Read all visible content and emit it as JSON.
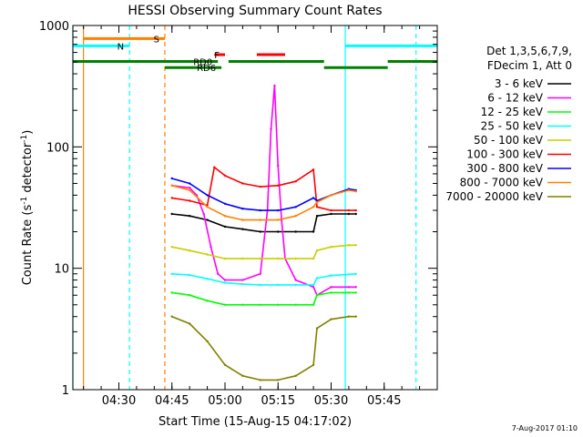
{
  "chart_data": {
    "type": "line",
    "title": "HESSI Observing Summary Count Rates",
    "xlabel": "Start Time (15-Aug-15 04:17:02)",
    "ylabel_main": "Count Rate (s",
    "ylabel_sup1": "-1",
    "ylabel_mid": " detector",
    "ylabel_sup2": "-1",
    "ylabel_end": ")",
    "y_scale": "log",
    "xlim": [
      "04:17",
      "06:00"
    ],
    "ylim": [
      1,
      1000
    ],
    "x_ticks": [
      {
        "label": "04:30",
        "t": "04:30"
      },
      {
        "label": "04:45",
        "t": "04:45"
      },
      {
        "label": "05:00",
        "t": "05:00"
      },
      {
        "label": "05:15",
        "t": "05:15"
      },
      {
        "label": "05:30",
        "t": "05:30"
      },
      {
        "label": "05:45",
        "t": "05:45"
      }
    ],
    "y_ticks": [
      {
        "label": "1",
        "value": 1
      },
      {
        "label": "10",
        "value": 10
      },
      {
        "label": "100",
        "value": 100
      },
      {
        "label": "1000",
        "value": 1000
      }
    ],
    "legend": {
      "placement": "right",
      "header": [
        "Det 1,3,5,6,7,9,",
        "FDecim 1, Att 0"
      ]
    },
    "data_gaps": [
      [
        "04:17",
        "04:45"
      ],
      [
        "05:37",
        "06:00"
      ]
    ],
    "series": [
      {
        "name": "3 - 6 keV",
        "color": "#000000",
        "x": [
          "04:45",
          "04:50",
          "04:55",
          "05:00",
          "05:05",
          "05:10",
          "05:15",
          "05:20",
          "05:25",
          "05:26",
          "05:30",
          "05:35",
          "05:37"
        ],
        "y": [
          28,
          27,
          25,
          22,
          21,
          20,
          20,
          20,
          20,
          27,
          28,
          28,
          28
        ]
      },
      {
        "name": "6 - 12 keV",
        "color": "#ff00ff",
        "x": [
          "04:45",
          "04:50",
          "04:52",
          "04:54",
          "04:56",
          "04:58",
          "05:00",
          "05:05",
          "05:10",
          "05:12",
          "05:13",
          "05:14",
          "05:15",
          "05:16",
          "05:17",
          "05:20",
          "05:25",
          "05:26",
          "05:30",
          "05:35",
          "05:37"
        ],
        "y": [
          48,
          46,
          40,
          28,
          15,
          9,
          8,
          8,
          9,
          30,
          140,
          320,
          70,
          25,
          12,
          8,
          7,
          6,
          7,
          7,
          7
        ]
      },
      {
        "name": "12 - 25 keV",
        "color": "#00ff00",
        "x": [
          "04:45",
          "04:50",
          "04:55",
          "05:00",
          "05:05",
          "05:10",
          "05:15",
          "05:20",
          "05:25",
          "05:26",
          "05:30",
          "05:35",
          "05:37"
        ],
        "y": [
          6.3,
          6,
          5.4,
          5,
          5,
          5,
          5,
          5,
          5,
          6,
          6.3,
          6.3,
          6.3
        ]
      },
      {
        "name": "25 - 50 keV",
        "color": "#00ffff",
        "x": [
          "04:45",
          "04:50",
          "04:55",
          "05:00",
          "05:05",
          "05:10",
          "05:15",
          "05:20",
          "05:25",
          "05:26",
          "05:30",
          "05:35",
          "05:37"
        ],
        "y": [
          9,
          8.8,
          8.2,
          7.6,
          7.4,
          7.3,
          7.3,
          7.3,
          7.3,
          8.3,
          8.7,
          8.9,
          9
        ]
      },
      {
        "name": "50 - 100 keV",
        "color": "#cccc00",
        "x": [
          "04:45",
          "04:50",
          "04:55",
          "05:00",
          "05:05",
          "05:10",
          "05:15",
          "05:20",
          "05:25",
          "05:26",
          "05:30",
          "05:35",
          "05:37"
        ],
        "y": [
          15,
          14,
          13,
          12,
          12,
          12,
          12,
          12,
          12,
          14,
          15,
          15.5,
          15.5
        ]
      },
      {
        "name": "100 - 300 keV",
        "color": "#ff0000",
        "x": [
          "04:45",
          "04:50",
          "04:55",
          "04:57",
          "05:00",
          "05:05",
          "05:10",
          "05:15",
          "05:20",
          "05:25",
          "05:26",
          "05:30",
          "05:35",
          "05:37"
        ],
        "y": [
          38,
          36,
          33,
          68,
          58,
          50,
          47,
          48,
          52,
          65,
          32,
          30,
          30,
          30
        ]
      },
      {
        "name": "300 - 800 keV",
        "color": "#0000ff",
        "x": [
          "04:45",
          "04:50",
          "04:55",
          "05:00",
          "05:05",
          "05:10",
          "05:15",
          "05:20",
          "05:25",
          "05:26",
          "05:30",
          "05:35",
          "05:37"
        ],
        "y": [
          55,
          50,
          40,
          34,
          31,
          30,
          30,
          32,
          38,
          36,
          40,
          45,
          44
        ]
      },
      {
        "name": "800 - 7000 keV",
        "color": "#ff8000",
        "x": [
          "04:45",
          "04:50",
          "04:55",
          "05:00",
          "05:05",
          "05:10",
          "05:15",
          "05:20",
          "05:25",
          "05:26",
          "05:30",
          "05:35",
          "05:37"
        ],
        "y": [
          48,
          44,
          32,
          27,
          25,
          25,
          25,
          27,
          32,
          35,
          40,
          44,
          43
        ]
      },
      {
        "name": "7000 - 20000 keV",
        "color": "#808000",
        "x": [
          "04:45",
          "04:50",
          "04:55",
          "05:00",
          "05:05",
          "05:10",
          "05:15",
          "05:20",
          "05:25",
          "05:26",
          "05:30",
          "05:35",
          "05:37"
        ],
        "y": [
          4,
          3.5,
          2.5,
          1.6,
          1.3,
          1.2,
          1.2,
          1.3,
          1.6,
          3.2,
          3.8,
          4,
          4
        ]
      }
    ],
    "flag_lines": [
      {
        "name": "S",
        "label": "S",
        "color": "#ff8000",
        "y_level": 780,
        "segments": [
          [
            "04:20",
            "04:43"
          ]
        ]
      },
      {
        "name": "N",
        "label": "N",
        "color": "#00ffff",
        "y_level": 680,
        "segments": [
          [
            "04:17",
            "04:33"
          ],
          [
            "05:34",
            "06:00"
          ]
        ]
      },
      {
        "name": "F",
        "label": "F",
        "color": "#ff0000",
        "y_level": 575,
        "segments": [
          [
            "04:57",
            "05:00"
          ],
          [
            "05:09",
            "05:17"
          ]
        ]
      },
      {
        "name": "RD0",
        "label": "RD0",
        "color": "#008000",
        "y_level": 505,
        "segments": [
          [
            "04:17",
            "04:58"
          ],
          [
            "05:01",
            "05:28"
          ],
          [
            "05:46",
            "06:00"
          ]
        ]
      },
      {
        "name": "RD6",
        "label": "RD6",
        "color": "#008000",
        "y_level": 450,
        "segments": [
          [
            "04:43",
            "04:59"
          ],
          [
            "05:28",
            "05:46"
          ]
        ]
      }
    ],
    "vertical_markers": [
      {
        "t": "04:17",
        "color": "#00ffff",
        "style": "solid"
      },
      {
        "t": "04:20",
        "color": "#ff8000",
        "style": "solid"
      },
      {
        "t": "04:33",
        "color": "#00ffff",
        "style": "dashed"
      },
      {
        "t": "04:43",
        "color": "#ff8000",
        "style": "dashed"
      },
      {
        "t": "05:34",
        "color": "#00ffff",
        "style": "solid"
      },
      {
        "t": "05:54",
        "color": "#00ffff",
        "style": "dashed"
      }
    ]
  },
  "footer": {
    "timestamp": "7-Aug-2017 01:10"
  }
}
